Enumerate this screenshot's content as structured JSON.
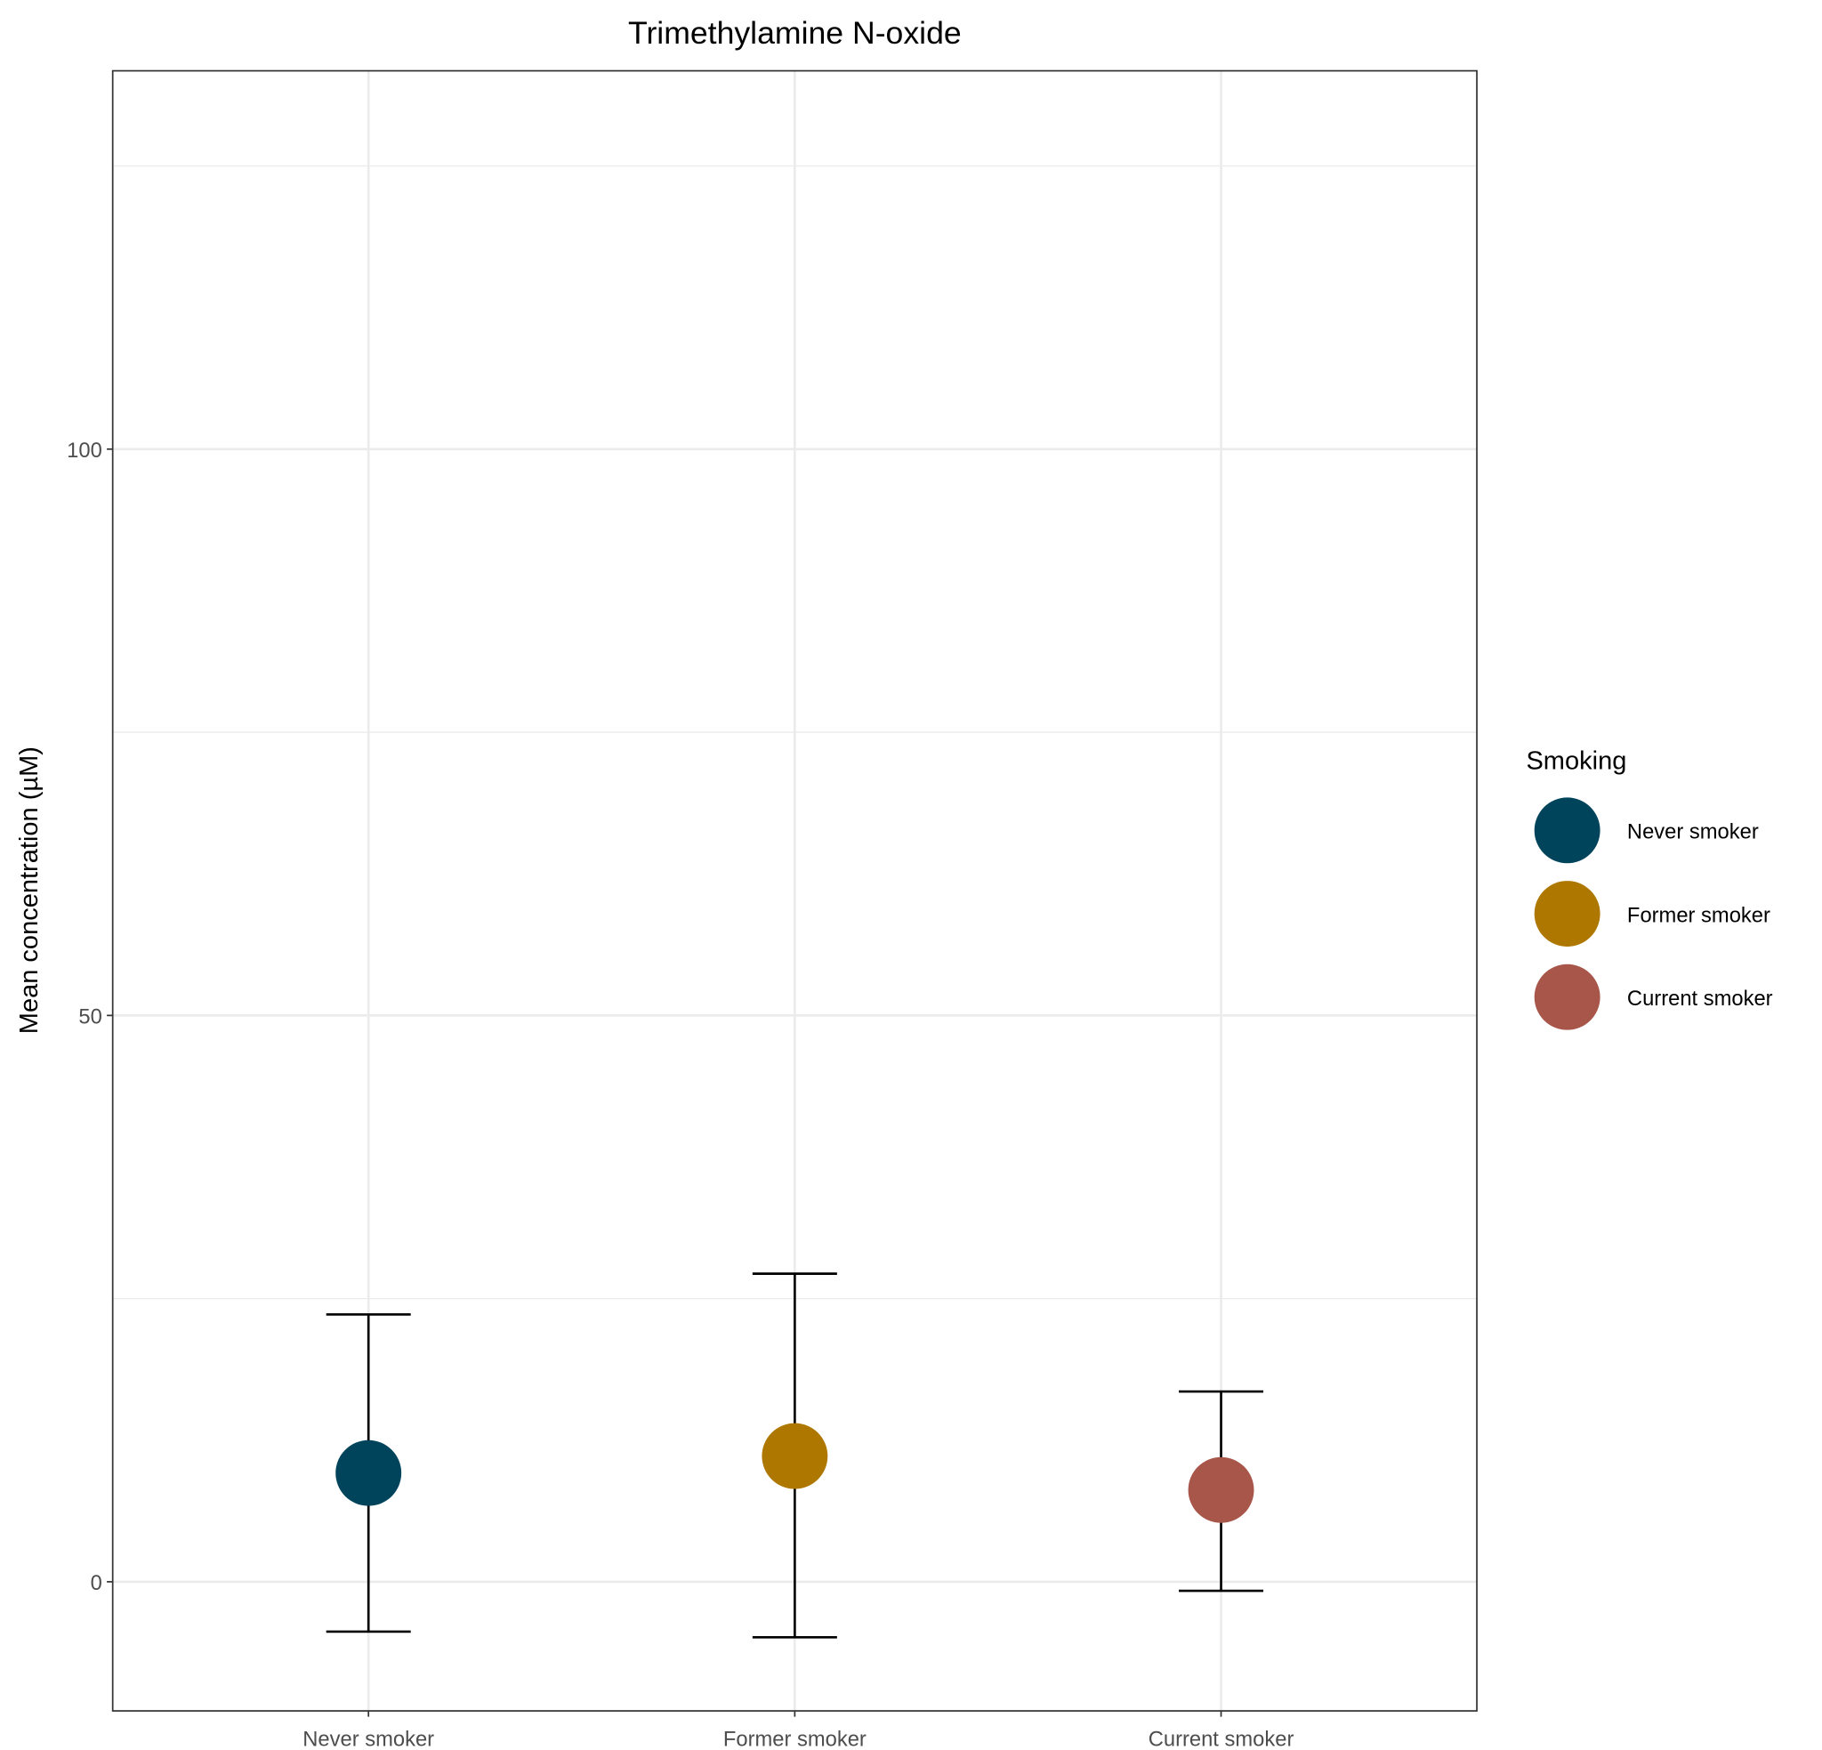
{
  "chart_data": {
    "type": "scatter",
    "title": "Trimethylamine N-oxide",
    "xlabel": "",
    "ylabel": "Mean concentration (µM)",
    "categories": [
      "Never smoker",
      "Former smoker",
      "Current smoker"
    ],
    "series": [
      {
        "category": "Never smoker",
        "mean": 9.6,
        "lower": -4.4,
        "upper": 23.6,
        "color": "#00445C"
      },
      {
        "category": "Former smoker",
        "mean": 11.1,
        "lower": -4.9,
        "upper": 27.2,
        "color": "#AD7700"
      },
      {
        "category": "Current smoker",
        "mean": 8.1,
        "lower": -0.8,
        "upper": 16.8,
        "color": "#A8554A"
      }
    ],
    "ylim": [
      -11.4,
      133.4
    ],
    "yticks": [
      0,
      50,
      100
    ],
    "ytick_labels": [
      "0",
      "50",
      "100"
    ],
    "grid": true,
    "legend": {
      "title": "Smoking",
      "placement": "right",
      "entries": [
        "Never smoker",
        "Former smoker",
        "Current smoker"
      ]
    }
  }
}
